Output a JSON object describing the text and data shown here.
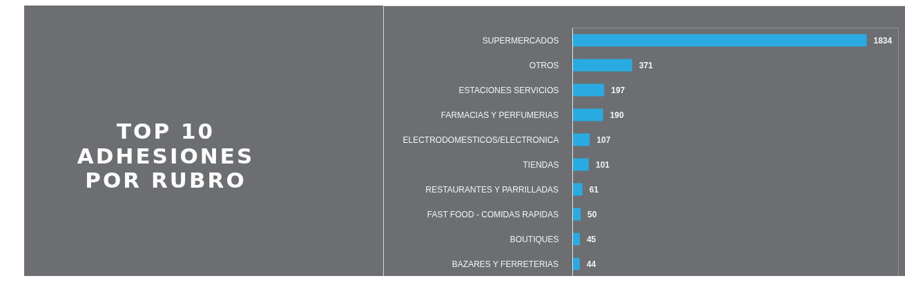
{
  "chart_data": {
    "type": "bar",
    "orientation": "horizontal",
    "title": "TOP 10\nADHESIONES\nPOR RUBRO",
    "categories": [
      "SUPERMERCADOS",
      "OTROS",
      "ESTACIONES SERVICIOS",
      "FARMACIAS Y PERFUMERIAS",
      "ELECTRODOMESTICOS/ELECTRONICA",
      "TIENDAS",
      "RESTAURANTES Y PARRILLADAS",
      "FAST FOOD - COMIDAS RAPIDAS",
      "BOUTIQUES",
      "BAZARES Y FERRETERIAS"
    ],
    "values": [
      1834,
      371,
      197,
      190,
      107,
      101,
      61,
      50,
      45,
      44
    ],
    "color": "#29abe2",
    "data_labels": true
  }
}
